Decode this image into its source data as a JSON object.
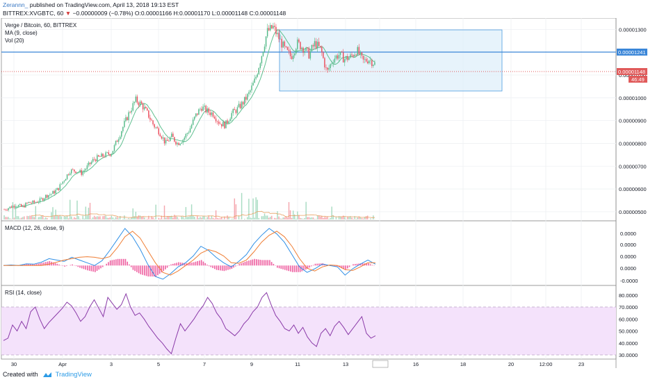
{
  "header": {
    "author": "Zerannn_",
    "published": "published on TradingView.com, April 13, 2018 19:13 EST",
    "symbol": "BITTREX:XVGBTC, 60",
    "change_arrow": "▼",
    "change": "−0.00000009 (−0.78%)",
    "open": "O:0.00001166",
    "high": "H:0.00001170",
    "low": "L:0.00001148",
    "close": "C:0.00001148",
    "price_label": "0.00001148"
  },
  "legend": {
    "main_title": "Verge / Bitcoin, 60, BITTREX",
    "ma": "MA (9, close)",
    "vol": "Vol (20)",
    "macd": "MACD (12, 26, close, 9)",
    "rsi": "RSI (14, close)"
  },
  "price_axis": {
    "ticks": [
      "0.00001300",
      "0.00001200",
      "0.00001100",
      "0.00001000",
      "0.00000900",
      "0.00000800",
      "0.00000700",
      "0.00000600",
      "0.00000500"
    ],
    "labels": [
      {
        "text": "0.00001241",
        "kind": "blue"
      },
      {
        "text": "0.00001148",
        "kind": "red"
      },
      {
        "text": "46:49",
        "kind": "red"
      }
    ]
  },
  "macd_axis": {
    "ticks": [
      "0.0000",
      "0.0000",
      "0.0000",
      "0.0000",
      "-0.0000"
    ]
  },
  "rsi_axis": {
    "ticks": [
      "80.0000",
      "70.0000",
      "60.0000",
      "50.0000",
      "40.0000",
      "30.0000"
    ]
  },
  "time_axis": {
    "ticks": [
      "30",
      "Apr",
      "3",
      "5",
      "7",
      "9",
      "11",
      "13",
      "12:00",
      "16",
      "18",
      "20",
      "12:00",
      "23"
    ]
  },
  "chart_data": {
    "type": "candlestick",
    "price_range": [
      4.6e-06,
      1.35e-05
    ],
    "resistance_line": 1.241e-05,
    "last_price": 1.148e-05,
    "range_box": {
      "top": 1.35e-05,
      "bottom": 1.05e-05
    },
    "price_path": [
      5.1e-06,
      5.2e-06,
      5.3e-06,
      5.2e-06,
      5.4e-06,
      5.4e-06,
      5.5e-06,
      5.7e-06,
      5.8e-06,
      6e-06,
      6.4e-06,
      6.8e-06,
      6.8e-06,
      6.7e-06,
      7e-06,
      7.3e-06,
      7.4e-06,
      7.5e-06,
      7.6e-06,
      8.2e-06,
      8.8e-06,
      9.4e-06,
      9.9e-06,
      9.7e-06,
      9.3e-06,
      8.8e-06,
      8.5e-06,
      8e-06,
      8.3e-06,
      8e-06,
      8.2e-06,
      8.6e-06,
      9.2e-06,
      9.6e-06,
      9.4e-06,
      9.3e-06,
      8.9e-06,
      8.8e-06,
      9.3e-06,
      9.5e-06,
      9.8e-06,
      1.02e-05,
      1.08e-05,
      1.18e-05,
      1.29e-05,
      1.31e-05,
      1.26e-05,
      1.21e-05,
      1.18e-05,
      1.24e-05,
      1.22e-05,
      1.19e-05,
      1.24e-05,
      1.21e-05,
      1.11e-05,
      1.17e-05,
      1.19e-05,
      1.17e-05,
      1.18e-05,
      1.21e-05,
      1.16e-05,
      1.17e-05,
      1.15e-05
    ],
    "macd_range": [
      -0.6,
      1.5
    ],
    "macd_line": [
      0,
      0.02,
      0,
      0.06,
      0.05,
      0.12,
      0.25,
      0.2,
      0.15,
      0.3,
      0.2,
      0.1,
      0,
      0.18,
      0.55,
      0.95,
      1.35,
      1.05,
      0.6,
      0.05,
      -0.4,
      -0.5,
      -0.3,
      -0.05,
      0.1,
      0.35,
      0.7,
      0.55,
      0.3,
      0.1,
      -0.05,
      0.15,
      0.4,
      0.8,
      1.1,
      1.35,
      1.15,
      0.85,
      0.4,
      -0.05,
      -0.25,
      -0.12,
      0.05,
      0.0,
      -0.05,
      -0.35,
      -0.12,
      0.05,
      0.2,
      0.05
    ],
    "macd_signal": [
      0,
      0,
      0,
      0,
      0,
      0,
      0.05,
      0.12,
      0.2,
      0.25,
      0.3,
      0.32,
      0.3,
      0.25,
      0.32,
      0.65,
      1.05,
      1.25,
      1.0,
      0.55,
      0.1,
      -0.25,
      -0.35,
      -0.2,
      0.0,
      0.2,
      0.45,
      0.58,
      0.5,
      0.35,
      0.1,
      0.08,
      0.2,
      0.5,
      0.85,
      1.1,
      1.25,
      1.05,
      0.7,
      0.25,
      -0.1,
      -0.2,
      -0.05,
      0.02,
      0.0,
      -0.15,
      -0.18,
      -0.05,
      0.1,
      0.1
    ],
    "rsi_range": [
      28,
      83
    ],
    "rsi_bands": [
      70,
      30
    ],
    "rsi_values": [
      42,
      44,
      55,
      50,
      58,
      52,
      66,
      70,
      60,
      52,
      57,
      61,
      65,
      69,
      74,
      71,
      65,
      58,
      62,
      70,
      76,
      69,
      62,
      78,
      73,
      68,
      72,
      81,
      70,
      63,
      65,
      60,
      54,
      49,
      44,
      40,
      35,
      31,
      44,
      56,
      50,
      55,
      60,
      66,
      71,
      78,
      73,
      65,
      60,
      52,
      49,
      46,
      50,
      56,
      60,
      66,
      70,
      78,
      82,
      72,
      63,
      58,
      52,
      50,
      55,
      48,
      53,
      45,
      40,
      37,
      48,
      52,
      46,
      54,
      58,
      53,
      47,
      52,
      57,
      62,
      48,
      44,
      46
    ]
  }
}
